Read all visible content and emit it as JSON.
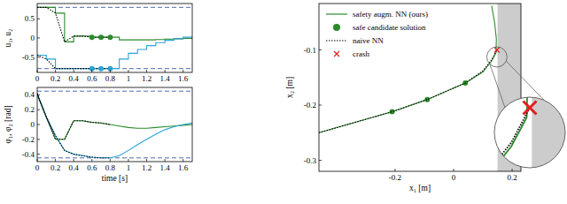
{
  "chart_data": [
    {
      "type": "line",
      "y_label": "u₁, u₂",
      "x": [
        0,
        0.1,
        0.2,
        0.3,
        0.4,
        0.5,
        0.6,
        0.7,
        0.8,
        0.9,
        1.0,
        1.1,
        1.2,
        1.3,
        1.4,
        1.5,
        1.6,
        1.7
      ],
      "xlim": [
        0,
        1.7
      ],
      "xticks": [
        0,
        0.2,
        0.4,
        0.6,
        0.8,
        1,
        1.2,
        1.4,
        1.6
      ],
      "ylim": [
        -0.9,
        0.9
      ],
      "yticks": [
        -0.5,
        0,
        0.5
      ],
      "hlines": [
        -0.8,
        0.8
      ],
      "series": [
        {
          "color": "#2a8a2a",
          "line_style": "step",
          "values": [
            0.8,
            0.8,
            0.65,
            -0.1,
            0.05,
            0.05,
            0.02,
            0.02,
            0.02,
            -0.05,
            -0.05,
            -0.05,
            -0.05,
            -0.04,
            -0.03,
            -0.02,
            -0.01,
            0.0
          ]
        },
        {
          "color": "#2aa4d8",
          "line_style": "step",
          "values": [
            -0.45,
            -0.55,
            -0.8,
            -0.8,
            -0.8,
            -0.8,
            -0.8,
            -0.8,
            -0.8,
            -0.55,
            -0.4,
            -0.3,
            -0.2,
            -0.12,
            -0.06,
            -0.02,
            0.02,
            0.05
          ]
        },
        {
          "color": "#000000",
          "line_style": "dotted",
          "values": [
            0.8,
            0.8,
            0.65,
            -0.1,
            0.05,
            0.05,
            0.02,
            0.02,
            0.02,
            null,
            null,
            null,
            null,
            null,
            null,
            null,
            null,
            null
          ]
        },
        {
          "color": "#000000",
          "line_style": "dotted",
          "values": [
            -0.45,
            -0.55,
            -0.8,
            -0.8,
            -0.8,
            -0.8,
            -0.8,
            -0.8,
            -0.8,
            null,
            null,
            null,
            null,
            null,
            null,
            null,
            null,
            null
          ]
        },
        {
          "type": "scatter",
          "marker": "circle",
          "color": "#2a8a2a",
          "x": [
            0.6,
            0.7,
            0.8
          ],
          "values": [
            0.02,
            0.02,
            0.02
          ]
        },
        {
          "type": "scatter",
          "marker": "circle",
          "color": "#2aa4d8",
          "x": [
            0.6,
            0.7,
            0.8
          ],
          "values": [
            -0.8,
            -0.8,
            -0.8
          ]
        }
      ]
    },
    {
      "type": "line",
      "x_label": "time [s]",
      "y_label": "φ₁, φ₂ [rad]",
      "x": [
        0,
        0.1,
        0.2,
        0.3,
        0.4,
        0.5,
        0.6,
        0.7,
        0.8,
        0.9,
        1.0,
        1.1,
        1.2,
        1.3,
        1.4,
        1.5,
        1.6,
        1.7
      ],
      "xlim": [
        0,
        1.7
      ],
      "xticks": [
        0,
        0.2,
        0.4,
        0.6,
        0.8,
        1,
        1.2,
        1.4,
        1.6
      ],
      "ylim": [
        -0.5,
        0.5
      ],
      "yticks": [
        -0.4,
        -0.2,
        0,
        0.2,
        0.4
      ],
      "hlines": [
        -0.45,
        0.45
      ],
      "series": [
        {
          "color": "#2a8a2a",
          "line_style": "solid",
          "values": [
            0.42,
            0.1,
            -0.2,
            -0.2,
            0.05,
            0.05,
            0.03,
            0.02,
            0.0,
            -0.02,
            -0.04,
            -0.05,
            -0.05,
            -0.04,
            -0.03,
            -0.02,
            -0.01,
            0.0
          ]
        },
        {
          "color": "#2aa4d8",
          "line_style": "solid",
          "values": [
            0.4,
            0.1,
            -0.15,
            -0.35,
            -0.4,
            -0.42,
            -0.44,
            -0.45,
            -0.45,
            -0.42,
            -0.35,
            -0.27,
            -0.2,
            -0.13,
            -0.07,
            -0.03,
            0.0,
            0.02
          ]
        },
        {
          "color": "#000000",
          "line_style": "dotted",
          "values": [
            0.42,
            0.1,
            -0.2,
            -0.2,
            0.05,
            0.05,
            0.03,
            0.02,
            0.0,
            null,
            null,
            null,
            null,
            null,
            null,
            null,
            null,
            null
          ]
        },
        {
          "color": "#000000",
          "line_style": "dotted",
          "values": [
            0.4,
            0.1,
            -0.15,
            -0.35,
            -0.4,
            -0.42,
            -0.44,
            -0.45,
            -0.45,
            null,
            null,
            null,
            null,
            null,
            null,
            null,
            null,
            null
          ]
        }
      ]
    },
    {
      "type": "line",
      "x_label": "x₁ [m]",
      "y_label": "x₂ [m]",
      "xlim": [
        -0.46,
        0.23
      ],
      "xticks": [
        -0.2,
        0,
        0.2
      ],
      "ylim": [
        -0.32,
        -0.016
      ],
      "yticks": [
        -0.3,
        -0.2,
        -0.1
      ],
      "unsafe_region": [
        0.15,
        0.23
      ],
      "legend": "upper left",
      "series": [
        {
          "name": "safety augm. NN (ours)",
          "color": "#2a8a2a",
          "line_style": "solid",
          "x": [
            -0.46,
            -0.21,
            -0.09,
            0.04,
            0.1,
            0.13,
            0.145,
            0.146,
            0.14,
            0.13
          ],
          "values": [
            -0.25,
            -0.212,
            -0.19,
            -0.16,
            -0.14,
            -0.12,
            -0.105,
            -0.08,
            -0.05,
            -0.02
          ]
        },
        {
          "name": "safe candidate solution",
          "type": "scatter",
          "marker": "circle",
          "color": "#2a8a2a",
          "x": [
            -0.21,
            -0.09,
            0.04
          ],
          "values": [
            -0.212,
            -0.19,
            -0.16
          ]
        },
        {
          "name": "naive NN",
          "color": "#000000",
          "line_style": "dotted",
          "x": [
            -0.46,
            -0.21,
            -0.09,
            0.04,
            0.1,
            0.13,
            0.148
          ],
          "values": [
            -0.25,
            -0.212,
            -0.19,
            -0.16,
            -0.138,
            -0.118,
            -0.1
          ]
        },
        {
          "name": "crash",
          "type": "scatter",
          "marker": "x",
          "color": "#e0201b",
          "x": [
            0.148
          ],
          "values": [
            -0.1
          ]
        }
      ]
    }
  ]
}
